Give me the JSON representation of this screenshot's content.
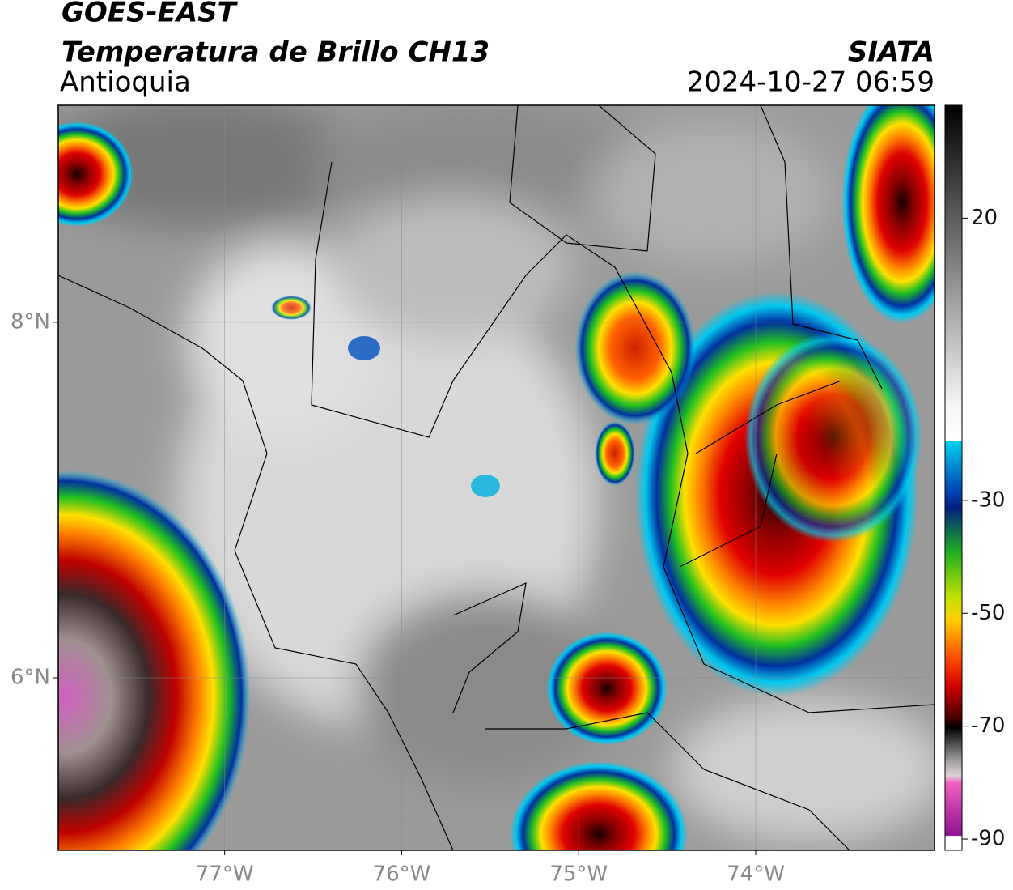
{
  "header": {
    "satellite": "GOES-EAST",
    "product": "Temperatura de Brillo CH13",
    "region": "Antioquia",
    "source": "SIATA",
    "datetime": "2024-10-27 06:59"
  },
  "map": {
    "lonlim": [
      -77.94,
      -72.99
    ],
    "latlim": [
      5.03,
      9.22
    ],
    "lon_ticks": [
      {
        "value": -77,
        "label": "77°W"
      },
      {
        "value": -76,
        "label": "76°W"
      },
      {
        "value": -75,
        "label": "75°W"
      },
      {
        "value": -74,
        "label": "74°W"
      }
    ],
    "lat_ticks": [
      {
        "value": 8,
        "label": "8°N"
      },
      {
        "value": 6,
        "label": "6°N"
      }
    ]
  },
  "colorbar": {
    "lim": [
      -92,
      40
    ],
    "ticks": [
      20,
      -30,
      -50,
      -70,
      -90
    ]
  }
}
